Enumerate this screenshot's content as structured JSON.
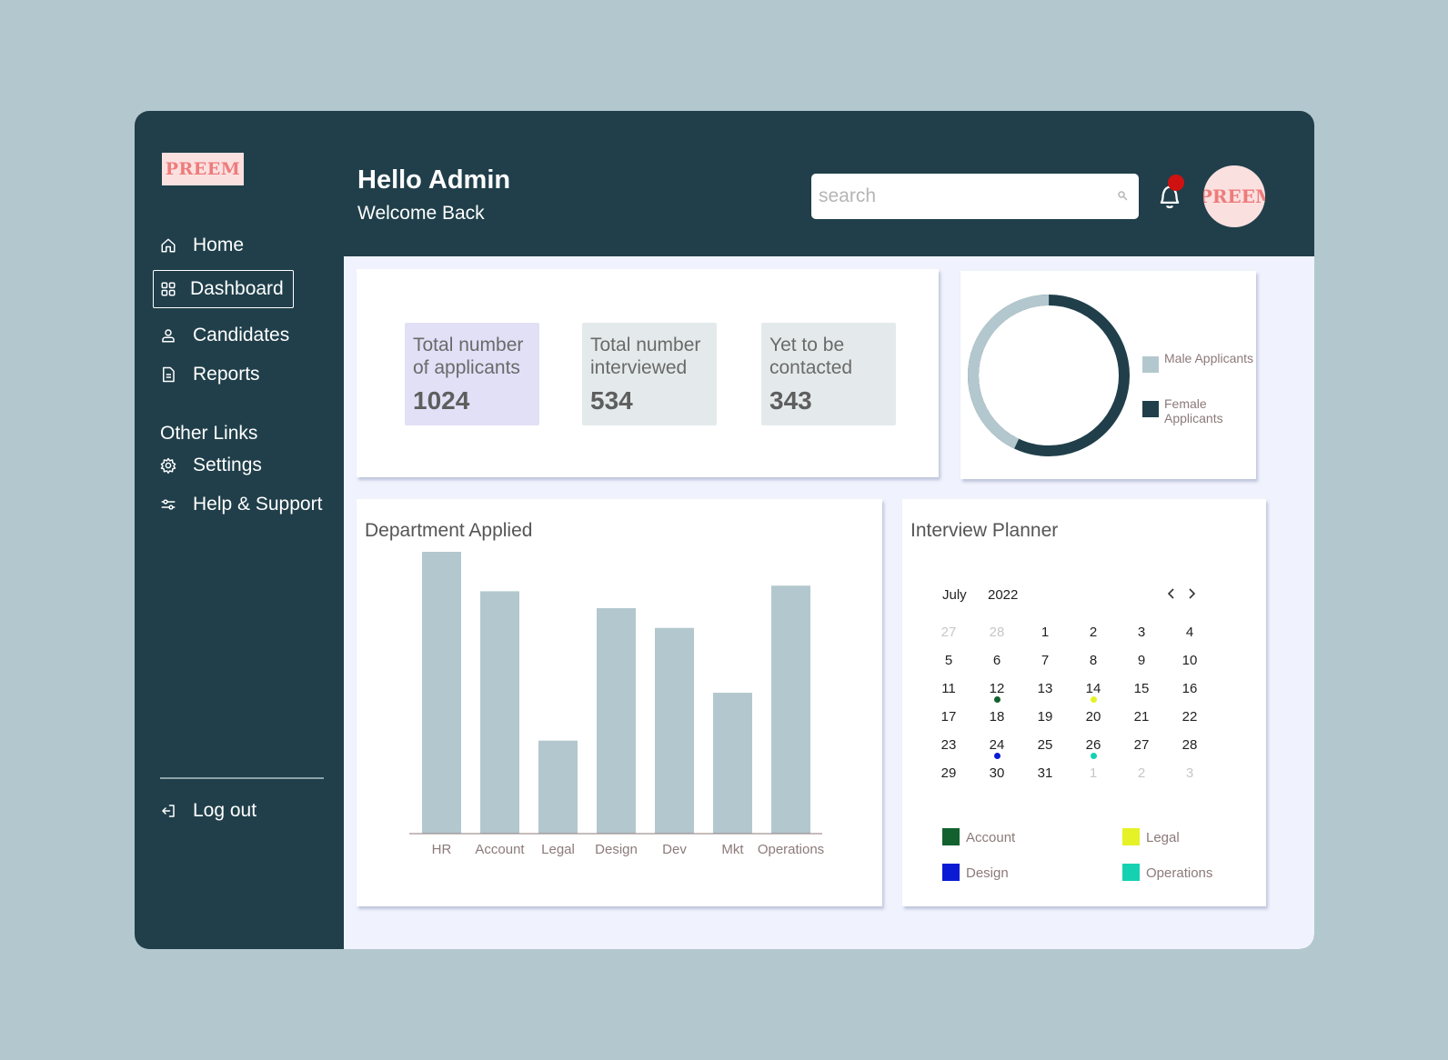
{
  "brand": {
    "logo_text": "PREEM",
    "avatar_text": "PREEM"
  },
  "sidebar": {
    "items": [
      {
        "label": "Home",
        "icon": "home-icon"
      },
      {
        "label": "Dashboard",
        "icon": "grid-icon"
      },
      {
        "label": "Candidates",
        "icon": "user-icon"
      },
      {
        "label": "Reports",
        "icon": "document-icon"
      }
    ],
    "other_links_label": "Other Links",
    "other_items": [
      {
        "label": "Settings",
        "icon": "gear-icon"
      },
      {
        "label": "Help & Support",
        "icon": "sliders-icon"
      }
    ],
    "logout_label": "Log out"
  },
  "header": {
    "title": "Hello Admin",
    "subtitle": "Welcome Back",
    "search_placeholder": "search"
  },
  "stats": [
    {
      "label": "Total number of applicants",
      "value": "1024",
      "color": "#e2e0f6"
    },
    {
      "label": "Total number interviewed",
      "value": "534",
      "color": "#e4eaeb"
    },
    {
      "label": "Yet to be contacted",
      "value": "343",
      "color": "#e4eaeb"
    }
  ],
  "gender_chart": {
    "legend": [
      {
        "label": "Male Applicants",
        "color": "#b3c8ce"
      },
      {
        "label": "Female Applicants",
        "color": "#203f4a"
      }
    ],
    "male_fraction": 0.43,
    "female_fraction": 0.57
  },
  "chart_data": {
    "type": "bar",
    "title": "Department Applied",
    "categories": [
      "HR",
      "Account",
      "Legal",
      "Design",
      "Dev",
      "Mkt",
      "Operations"
    ],
    "values": [
      100,
      86,
      33,
      80,
      73,
      50,
      88
    ],
    "xlabel": "",
    "ylabel": "",
    "ylim": [
      0,
      100
    ],
    "bar_color": "#b3c8ce",
    "grid": false
  },
  "planner": {
    "title": "Interview Planner",
    "month": "July",
    "year": "2022",
    "prev_icon": "chevron-left-icon",
    "next_icon": "chevron-right-icon",
    "weeks": [
      [
        "27",
        "28",
        "1",
        "2",
        "3",
        "4"
      ],
      [
        "5",
        "6",
        "7",
        "8",
        "9",
        "10"
      ],
      [
        "11",
        "12",
        "13",
        "14",
        "15",
        "16"
      ],
      [
        "17",
        "18",
        "19",
        "20",
        "21",
        "22"
      ],
      [
        "23",
        "24",
        "25",
        "26",
        "27",
        "28"
      ],
      [
        "29",
        "30",
        "31",
        "1",
        "2",
        "3"
      ]
    ],
    "legend": [
      {
        "label": "Account",
        "color": "#12612f"
      },
      {
        "label": "Legal",
        "color": "#e5f225"
      },
      {
        "label": "Design",
        "color": "#0b1bd4"
      },
      {
        "label": "Operations",
        "color": "#14d2b1"
      }
    ]
  }
}
